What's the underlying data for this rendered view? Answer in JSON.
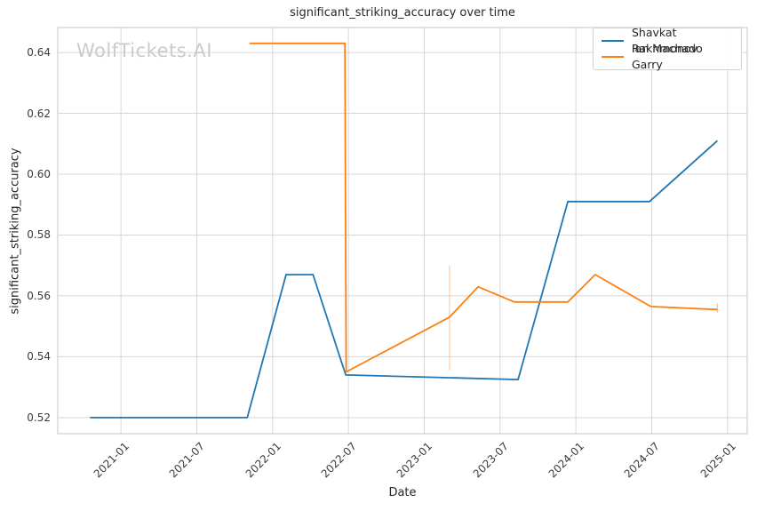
{
  "watermark": {
    "text": "WolfTickets.AI",
    "color": "#cbcbcb"
  },
  "chart_data": {
    "type": "line",
    "title": "significant_striking_accuracy over time",
    "xlabel": "Date",
    "ylabel": "significant_striking_accuracy",
    "x_ticks": [
      "2021-01",
      "2021-07",
      "2022-01",
      "2022-07",
      "2023-01",
      "2023-07",
      "2024-01",
      "2024-07",
      "2025-01"
    ],
    "y_ticks": [
      "0.52",
      "0.54",
      "0.56",
      "0.58",
      "0.60",
      "0.62",
      "0.64"
    ],
    "xlim": [
      "2020-08-01",
      "2025-02-18"
    ],
    "ylim": [
      0.5147,
      0.6482
    ],
    "grid": true,
    "grid_color": "#d7d7d7",
    "border_color": "#cfcfcf",
    "legend_position": "upper right",
    "series": [
      {
        "name": "Shavkat Rakhmonov",
        "color": "#1f77b4",
        "points": [
          [
            "2020-10-18",
            0.52
          ],
          [
            "2021-11-01",
            0.52
          ],
          [
            "2022-02-03",
            0.567
          ],
          [
            "2022-04-07",
            0.567
          ],
          [
            "2022-06-25",
            0.534
          ],
          [
            "2023-08-14",
            0.5325
          ],
          [
            "2023-12-12",
            0.591
          ],
          [
            "2024-06-26",
            0.591
          ],
          [
            "2024-12-07",
            0.611
          ]
        ]
      },
      {
        "name": "Ian Machado Garry",
        "color": "#ff7f0e",
        "points": [
          [
            "2021-11-06",
            0.643
          ],
          [
            "2022-06-23",
            0.643
          ],
          [
            "2022-06-26",
            0.535
          ],
          [
            "2023-03-01",
            0.553
          ],
          [
            "2023-05-09",
            0.563
          ],
          [
            "2023-08-05",
            0.558
          ],
          [
            "2023-12-12",
            0.558
          ],
          [
            "2024-02-17",
            0.567
          ],
          [
            "2024-06-29",
            0.5565
          ],
          [
            "2024-12-07",
            0.5555
          ]
        ]
      }
    ],
    "annotations": [
      {
        "type": "vline",
        "x": "2023-03-01",
        "y_from": 0.5355,
        "y_to": 0.57,
        "color": "#ff7f0e",
        "opacity": 0.3
      },
      {
        "type": "vline",
        "x": "2024-12-07",
        "y_from": 0.5545,
        "y_to": 0.5575,
        "color": "#ff7f0e",
        "opacity": 0.45
      }
    ]
  }
}
